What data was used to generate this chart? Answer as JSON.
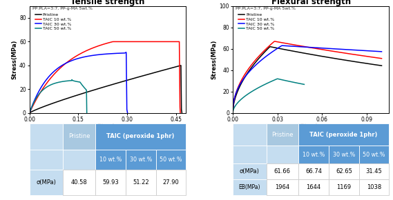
{
  "tensile": {
    "title": "Tensile strength",
    "subtitle": "PP:PLA=3:7, PP-g-MA 5wt.%",
    "xlabel": "Strain",
    "ylabel": "Stress(MPa)",
    "xlim": [
      0.0,
      0.48
    ],
    "ylim": [
      0,
      90
    ],
    "xticks": [
      0.0,
      0.15,
      0.3,
      0.45
    ],
    "yticks": [
      0,
      20,
      40,
      60,
      80
    ],
    "legend": [
      "Pristine",
      "TAIC 10 wt.%",
      "TAIC 30 wt.%",
      "TAIC 50 wt.%"
    ],
    "colors": [
      "black",
      "red",
      "blue",
      "#008080"
    ],
    "table_header1": "TAIC (peroxide 1phr)",
    "table_col0": "σ(MPa)",
    "table_vals": [
      "40.58",
      "59.93",
      "51.22",
      "27.90"
    ]
  },
  "flexural": {
    "title": "Flexural strength",
    "subtitle": "PP:PLA=3:7, PP-g-MA 5wt.%",
    "xlabel": "Strain",
    "ylabel": "Stress(MPa)",
    "xlim": [
      0.0,
      0.105
    ],
    "ylim": [
      0,
      100
    ],
    "xticks": [
      0.0,
      0.03,
      0.06,
      0.09
    ],
    "yticks": [
      0,
      20,
      40,
      60,
      80,
      100
    ],
    "legend": [
      "Pristine",
      "TAIC 10 wt.%",
      "TAIC 30 wt.%",
      "TAIC 50 wt.%"
    ],
    "colors": [
      "black",
      "red",
      "blue",
      "#008080"
    ],
    "table_header1": "TAIC (peroxide 1phr)",
    "table_row1_col0": "σ(MPa)",
    "table_row1_vals": [
      "61.66",
      "66.74",
      "62.65",
      "31.45"
    ],
    "table_row2_col0": "EB(MPa)",
    "table_row2_vals": [
      "1964",
      "1644",
      "1169",
      "1038"
    ]
  },
  "table_bg_light": "#c5ddf0",
  "table_bg_dark": "#5b9bd5",
  "table_pristine_bg": "#a8c8e0",
  "pristine_label": "Pristine",
  "subheader_cols": [
    "10 wt.%",
    "30 wt.%",
    "50 wt.%"
  ]
}
